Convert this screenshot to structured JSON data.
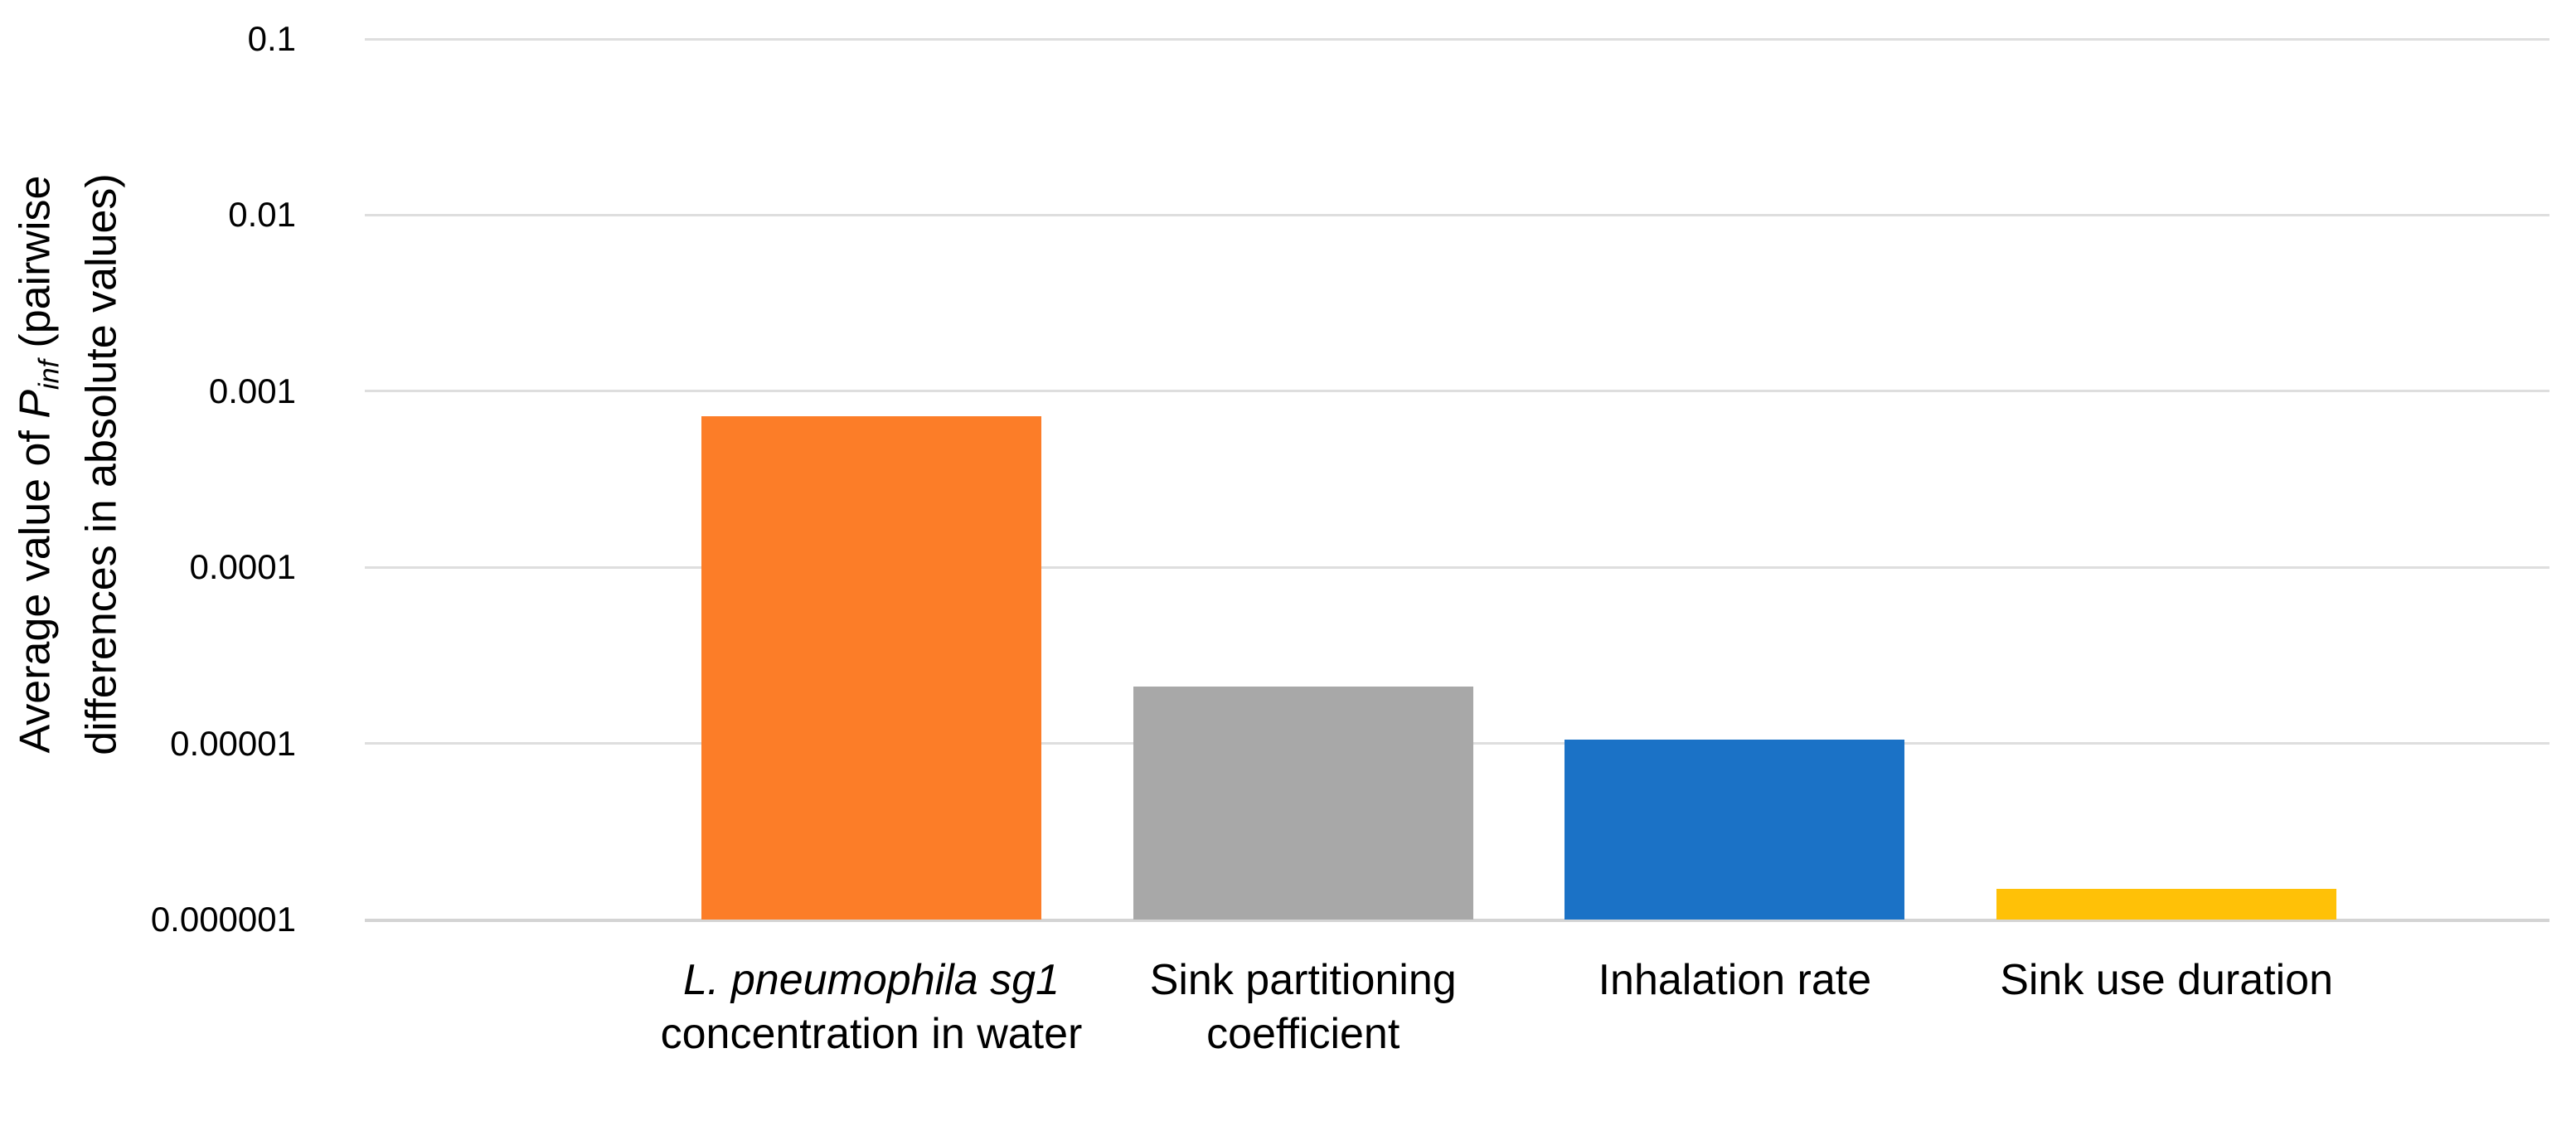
{
  "chart_data": {
    "type": "bar",
    "title": "",
    "xlabel": "",
    "ylabel": "Average value of Pinf (pairwise differences in absolute values)",
    "ylabel_parts": {
      "prefix": "Average value of ",
      "p": "P",
      "p_sub": "inf",
      "mid": " (pairwise",
      "line2": "differences in absolute values)"
    },
    "yscale": "log",
    "ylim": [
      1e-06,
      0.1
    ],
    "y_tick_labels": [
      "0.1",
      "0.01",
      "0.001",
      "0.0001",
      "0.00001",
      "0.000001"
    ],
    "y_tick_values": [
      0.1,
      0.01,
      0.001,
      0.0001,
      1e-05,
      1e-06
    ],
    "grid": "horizontal",
    "legend": "none",
    "categories": [
      {
        "name_italic": "L. pneumophila sg1",
        "name": "concentration in water"
      },
      {
        "name_italic": "",
        "name": "Sink partitioning coefficient"
      },
      {
        "name_italic": "",
        "name": "Inhalation rate"
      },
      {
        "name_italic": "",
        "name": "Sink use duration"
      }
    ],
    "values": [
      0.00072,
      2.1e-05,
      1.05e-05,
      1.5e-06
    ],
    "bar_colors": [
      "#FC7D28",
      "#A8A8A8",
      "#1B72C6",
      "#FFC107"
    ],
    "gridline_color": "#DEDEDE",
    "axis_line_color": "#D4D4D4",
    "text_color": "#000000"
  }
}
